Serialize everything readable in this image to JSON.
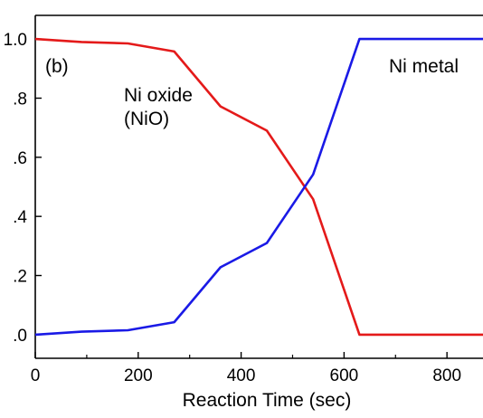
{
  "chart_data": {
    "type": "line",
    "panel_label": "(b)",
    "xlabel": "Reaction Time (sec)",
    "ylabel": "",
    "xlim": [
      0,
      870
    ],
    "ylim": [
      -0.08,
      1.08
    ],
    "xticks": [
      0,
      200,
      400,
      600,
      800
    ],
    "yticks": [
      0.0,
      0.2,
      0.4,
      0.6,
      0.8,
      1.0
    ],
    "ytick_labels": [
      ".0",
      ".2",
      ".4",
      ".6",
      ".8",
      "1.0"
    ],
    "xtick_labels": [
      "0",
      "200",
      "400",
      "600",
      "800"
    ],
    "grid": false,
    "series": [
      {
        "name": "Ni oxide\n(NiO)",
        "label_lines": [
          "Ni oxide",
          "(NiO)"
        ],
        "color": "#e41a1a",
        "x": [
          0,
          90,
          180,
          270,
          360,
          450,
          540,
          630,
          720,
          810,
          870
        ],
        "y": [
          1.0,
          0.99,
          0.985,
          0.958,
          0.772,
          0.69,
          0.458,
          0.0,
          0.0,
          0.0,
          0.0
        ]
      },
      {
        "name": "Ni metal",
        "label_lines": [
          "Ni metal"
        ],
        "color": "#1a1ae6",
        "x": [
          0,
          90,
          180,
          270,
          360,
          450,
          540,
          630,
          720,
          810,
          870
        ],
        "y": [
          0.0,
          0.01,
          0.015,
          0.042,
          0.228,
          0.31,
          0.542,
          1.0,
          1.0,
          1.0,
          1.0
        ]
      }
    ]
  }
}
